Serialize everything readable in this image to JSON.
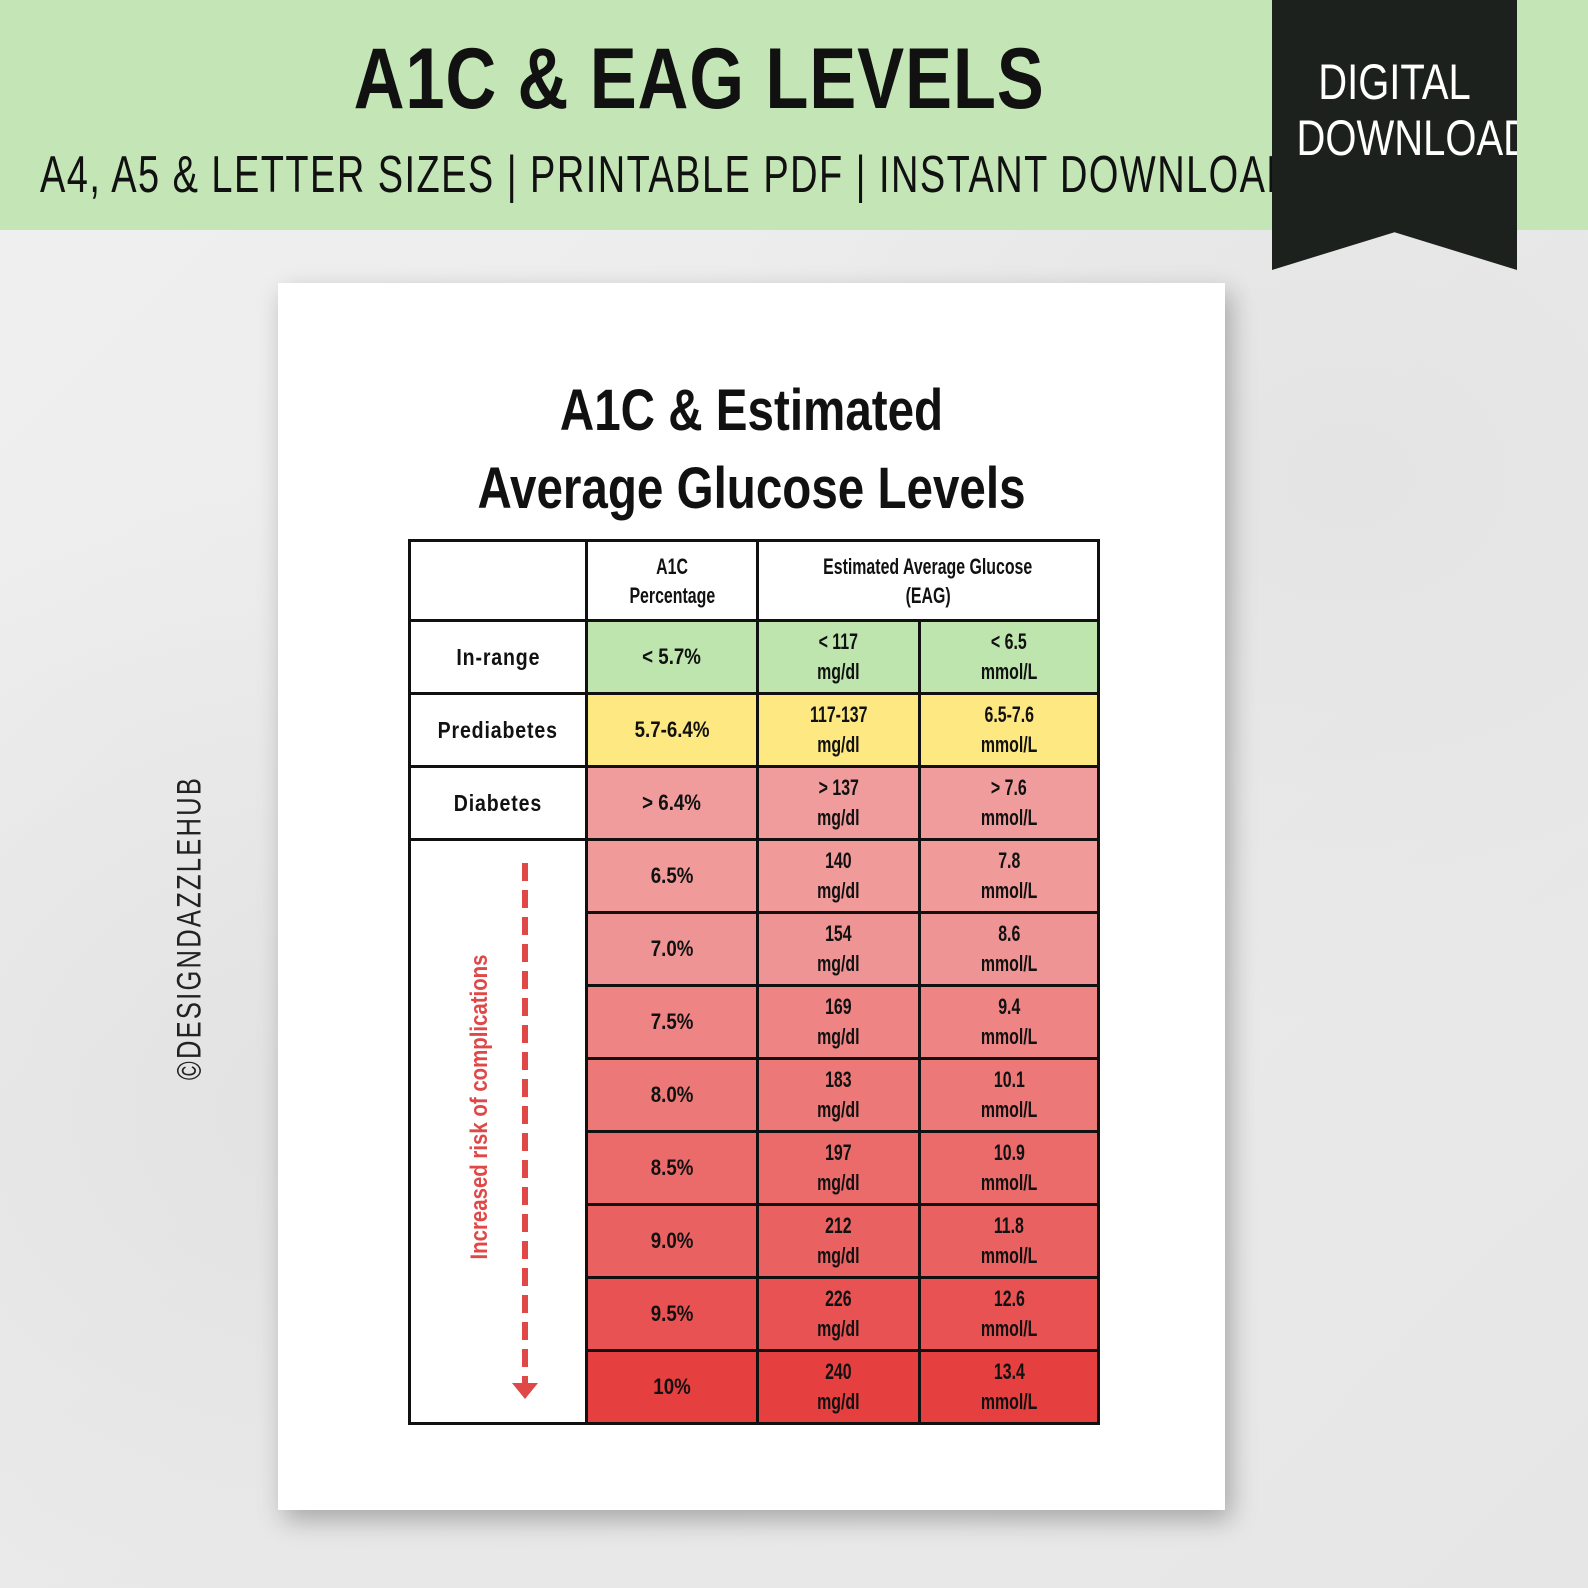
{
  "banner": {
    "title": "A1C & EAG LEVELS",
    "subtitle": "A4, A5 & LETTER SIZES | PRINTABLE PDF | INSTANT DOWNLOAD",
    "ribbon_line1": "DIGITAL",
    "ribbon_line2": "DOWNLOAD",
    "color": "#c4e6b6"
  },
  "watermark": "©DESIGNDAZZLEHUB",
  "document": {
    "title_line1": "A1C & Estimated",
    "title_line2": "Average Glucose Levels",
    "headers": {
      "a1c_line1": "A1C",
      "a1c_line2": "Percentage",
      "eag_line1": "Estimated Average Glucose",
      "eag_line2": "(EAG)"
    },
    "risk_label": "Increased risk of complications",
    "rows": [
      {
        "label": "In-range",
        "a1c": "< 5.7%",
        "mgdl": "< 117",
        "mgdl_unit": "mg/dl",
        "mmol": "< 6.5",
        "mmol_unit": "mmol/L",
        "color": "#bde5ad"
      },
      {
        "label": "Prediabetes",
        "a1c": "5.7-6.4%",
        "mgdl": "117-137",
        "mgdl_unit": "mg/dl",
        "mmol": "6.5-7.6",
        "mmol_unit": "mmol/L",
        "color": "#fde882"
      },
      {
        "label": "Diabetes",
        "a1c": "> 6.4%",
        "mgdl": "> 137",
        "mgdl_unit": "mg/dl",
        "mmol": "> 7.6",
        "mmol_unit": "mmol/L",
        "color": "#f09c9c"
      },
      {
        "a1c": "6.5%",
        "mgdl": "140",
        "mgdl_unit": "mg/dl",
        "mmol": "7.8",
        "mmol_unit": "mmol/L",
        "color": "#f09a9a"
      },
      {
        "a1c": "7.0%",
        "mgdl": "154",
        "mgdl_unit": "mg/dl",
        "mmol": "8.6",
        "mmol_unit": "mmol/L",
        "color": "#ef9494"
      },
      {
        "a1c": "7.5%",
        "mgdl": "169",
        "mgdl_unit": "mg/dl",
        "mmol": "9.4",
        "mmol_unit": "mmol/L",
        "color": "#ee8484"
      },
      {
        "a1c": "8.0%",
        "mgdl": "183",
        "mgdl_unit": "mg/dl",
        "mmol": "10.1",
        "mmol_unit": "mmol/L",
        "color": "#ed7878"
      },
      {
        "a1c": "8.5%",
        "mgdl": "197",
        "mgdl_unit": "mg/dl",
        "mmol": "10.9",
        "mmol_unit": "mmol/L",
        "color": "#eb6a6a"
      },
      {
        "a1c": "9.0%",
        "mgdl": "212",
        "mgdl_unit": "mg/dl",
        "mmol": "11.8",
        "mmol_unit": "mmol/L",
        "color": "#ea6161"
      },
      {
        "a1c": "9.5%",
        "mgdl": "226",
        "mgdl_unit": "mg/dl",
        "mmol": "12.6",
        "mmol_unit": "mmol/L",
        "color": "#e95252"
      },
      {
        "a1c": "10%",
        "mgdl": "240",
        "mgdl_unit": "mg/dl",
        "mmol": "13.4",
        "mmol_unit": "mmol/L",
        "color": "#e63f3f"
      }
    ]
  }
}
